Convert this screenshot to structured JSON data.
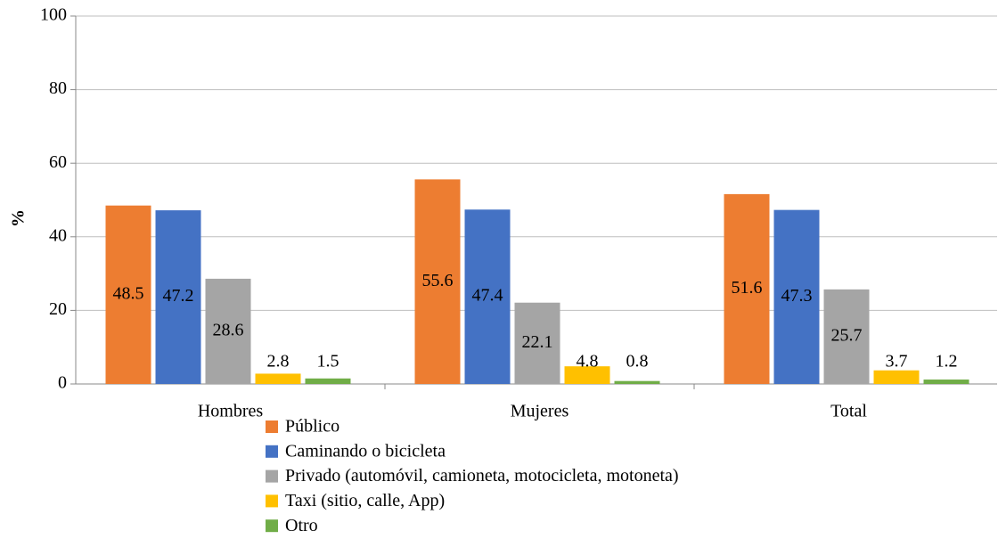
{
  "chart_data": {
    "type": "bar",
    "y_label": "%",
    "categories": [
      "Hombres",
      "Mujeres",
      "Total"
    ],
    "series": [
      {
        "name": "Público",
        "color": "#ed7d31",
        "values": [
          48.5,
          55.6,
          51.6
        ]
      },
      {
        "name": "Caminando o bicicleta",
        "color": "#4472c4",
        "values": [
          47.2,
          47.4,
          47.3
        ]
      },
      {
        "name": "Privado (automóvil, camioneta, motocicleta, motoneta)",
        "color": "#a5a5a5",
        "values": [
          28.6,
          22.1,
          25.7
        ]
      },
      {
        "name": "Taxi (sitio, calle, App)",
        "color": "#ffc000",
        "values": [
          2.8,
          4.8,
          3.7
        ]
      },
      {
        "name": "Otro",
        "color": "#70ad47",
        "values": [
          1.5,
          0.8,
          1.2
        ]
      }
    ],
    "ylim": [
      0,
      100
    ],
    "yticks": [
      0,
      20,
      40,
      60,
      80,
      100
    ],
    "grid": true,
    "legend": "bottom"
  }
}
